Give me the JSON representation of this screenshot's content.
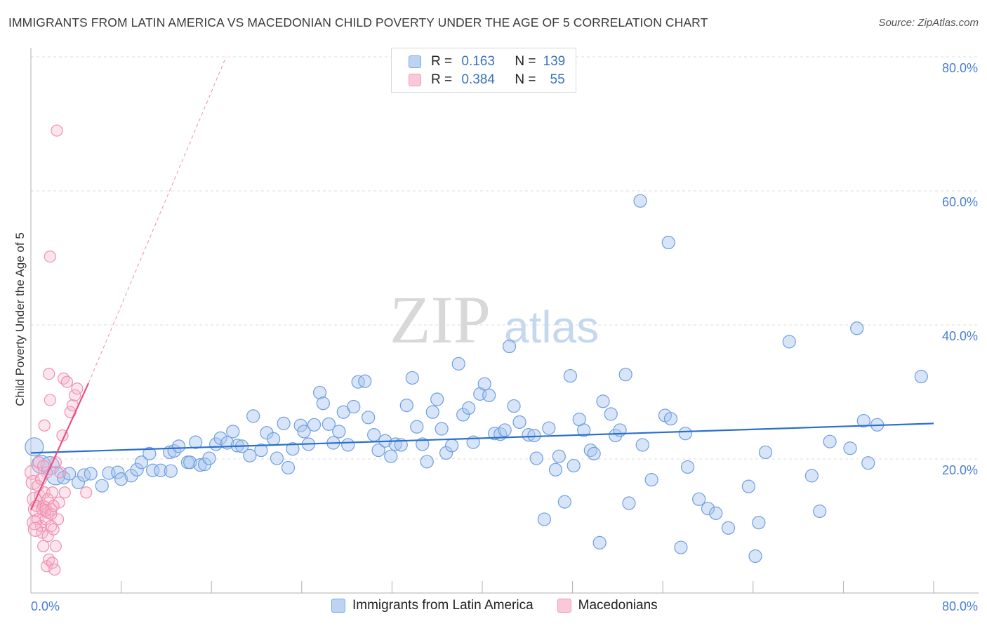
{
  "title": "IMMIGRANTS FROM LATIN AMERICA VS MACEDONIAN CHILD POVERTY UNDER THE AGE OF 5 CORRELATION CHART",
  "source": "Source: ZipAtlas.com",
  "watermark": {
    "zip": "ZIP",
    "atlas": "atlas"
  },
  "colors": {
    "blue": "#7aa8e8",
    "blue_line": "#2b6fcf",
    "pink": "#f29ab6",
    "pink_line": "#e8507e",
    "tick_text": "#4a7fd0"
  },
  "legend": {
    "rows": [
      {
        "r_label": "R =",
        "r_value": "0.163",
        "n_label": "N =",
        "n_value": "139"
      },
      {
        "r_label": "R =",
        "r_value": "0.384",
        "n_label": "N =",
        "n_value": "55"
      }
    ]
  },
  "bottom_legend": [
    "Immigrants from Latin America",
    "Macedonians"
  ],
  "chart_data": {
    "type": "scatter",
    "title": "IMMIGRANTS FROM LATIN AMERICA VS MACEDONIAN CHILD POVERTY UNDER THE AGE OF 5 CORRELATION CHART",
    "xlabel": "",
    "ylabel": "Child Poverty Under the Age of 5",
    "xlim": [
      0,
      80
    ],
    "ylim": [
      0,
      80
    ],
    "x_tick_labels": [
      "0.0%",
      "80.0%"
    ],
    "y_tick_labels": [
      "20.0%",
      "40.0%",
      "60.0%",
      "80.0%"
    ],
    "y_ticks": [
      20,
      40,
      60,
      80
    ],
    "grid": "horizontal dashed",
    "legend_position": "top-center",
    "series": [
      {
        "name": "Immigrants from Latin America",
        "color": "#7aa8e8",
        "r": 0.163,
        "n": 139,
        "trend": {
          "x": [
            0,
            80
          ],
          "y": [
            20.9,
            25.3
          ]
        },
        "points": [
          [
            0.3,
            21.8
          ],
          [
            0.9,
            19.2
          ],
          [
            1.7,
            19.0
          ],
          [
            2.2,
            17.5
          ],
          [
            2.9,
            17.2
          ],
          [
            3.4,
            17.8
          ],
          [
            4.2,
            16.5
          ],
          [
            4.7,
            17.6
          ],
          [
            5.3,
            17.8
          ],
          [
            6.3,
            16.0
          ],
          [
            6.9,
            17.9
          ],
          [
            7.7,
            18.0
          ],
          [
            8.0,
            17.0
          ],
          [
            8.9,
            17.5
          ],
          [
            9.4,
            18.4
          ],
          [
            9.8,
            19.5
          ],
          [
            10.5,
            20.8
          ],
          [
            10.8,
            18.3
          ],
          [
            11.5,
            18.3
          ],
          [
            12.3,
            21.0
          ],
          [
            12.4,
            18.2
          ],
          [
            12.7,
            21.2
          ],
          [
            13.1,
            21.9
          ],
          [
            13.9,
            19.5
          ],
          [
            14.1,
            19.5
          ],
          [
            14.6,
            22.5
          ],
          [
            15.0,
            19.1
          ],
          [
            15.4,
            19.2
          ],
          [
            15.8,
            20.1
          ],
          [
            16.4,
            22.2
          ],
          [
            16.8,
            23.1
          ],
          [
            17.4,
            22.4
          ],
          [
            17.9,
            24.1
          ],
          [
            18.3,
            22.0
          ],
          [
            18.7,
            21.9
          ],
          [
            19.4,
            20.5
          ],
          [
            19.7,
            26.4
          ],
          [
            20.4,
            21.3
          ],
          [
            20.9,
            23.9
          ],
          [
            21.5,
            23.0
          ],
          [
            21.8,
            20.1
          ],
          [
            22.4,
            25.3
          ],
          [
            22.8,
            18.7
          ],
          [
            23.2,
            21.5
          ],
          [
            23.9,
            25.0
          ],
          [
            24.2,
            24.1
          ],
          [
            24.6,
            22.2
          ],
          [
            25.1,
            25.1
          ],
          [
            25.6,
            29.9
          ],
          [
            25.9,
            28.3
          ],
          [
            26.4,
            25.2
          ],
          [
            26.8,
            22.4
          ],
          [
            27.3,
            24.1
          ],
          [
            27.7,
            27.0
          ],
          [
            28.1,
            22.1
          ],
          [
            28.6,
            27.8
          ],
          [
            29.0,
            31.5
          ],
          [
            29.6,
            31.6
          ],
          [
            29.9,
            26.2
          ],
          [
            30.4,
            23.6
          ],
          [
            30.8,
            21.3
          ],
          [
            31.4,
            22.7
          ],
          [
            31.9,
            20.4
          ],
          [
            32.3,
            22.2
          ],
          [
            32.8,
            22.1
          ],
          [
            33.3,
            28.0
          ],
          [
            33.8,
            32.1
          ],
          [
            34.2,
            24.8
          ],
          [
            34.7,
            22.2
          ],
          [
            35.1,
            19.6
          ],
          [
            35.6,
            27.0
          ],
          [
            36.0,
            28.9
          ],
          [
            36.4,
            24.5
          ],
          [
            36.8,
            20.9
          ],
          [
            37.3,
            22.0
          ],
          [
            37.9,
            34.2
          ],
          [
            38.3,
            26.6
          ],
          [
            38.8,
            27.6
          ],
          [
            39.2,
            22.5
          ],
          [
            39.8,
            29.7
          ],
          [
            40.2,
            31.2
          ],
          [
            40.6,
            29.5
          ],
          [
            41.1,
            23.8
          ],
          [
            41.6,
            23.7
          ],
          [
            42.0,
            24.3
          ],
          [
            42.4,
            36.8
          ],
          [
            42.8,
            27.9
          ],
          [
            43.3,
            25.5
          ],
          [
            44.1,
            23.6
          ],
          [
            44.6,
            23.5
          ],
          [
            44.8,
            20.1
          ],
          [
            45.5,
            11.0
          ],
          [
            45.9,
            24.6
          ],
          [
            46.5,
            18.4
          ],
          [
            46.8,
            20.4
          ],
          [
            47.3,
            13.6
          ],
          [
            47.8,
            32.4
          ],
          [
            48.1,
            19.0
          ],
          [
            48.6,
            25.9
          ],
          [
            49.0,
            24.3
          ],
          [
            49.6,
            21.3
          ],
          [
            49.9,
            20.8
          ],
          [
            50.4,
            7.5
          ],
          [
            50.7,
            28.6
          ],
          [
            51.4,
            26.7
          ],
          [
            51.8,
            23.5
          ],
          [
            52.2,
            24.3
          ],
          [
            52.7,
            32.6
          ],
          [
            53.0,
            13.4
          ],
          [
            54.0,
            58.5
          ],
          [
            54.2,
            22.1
          ],
          [
            55.0,
            16.9
          ],
          [
            56.2,
            26.5
          ],
          [
            56.5,
            52.3
          ],
          [
            56.7,
            26.0
          ],
          [
            57.6,
            6.8
          ],
          [
            58.0,
            23.8
          ],
          [
            58.2,
            18.8
          ],
          [
            59.2,
            14.0
          ],
          [
            60.0,
            12.6
          ],
          [
            60.7,
            11.9
          ],
          [
            61.8,
            9.7
          ],
          [
            63.6,
            15.9
          ],
          [
            64.2,
            5.5
          ],
          [
            64.5,
            10.5
          ],
          [
            65.1,
            21.0
          ],
          [
            67.2,
            37.5
          ],
          [
            69.2,
            17.5
          ],
          [
            69.9,
            12.2
          ],
          [
            70.8,
            22.6
          ],
          [
            72.6,
            21.6
          ],
          [
            73.2,
            39.5
          ],
          [
            73.8,
            25.7
          ],
          [
            74.2,
            19.4
          ],
          [
            75.0,
            25.1
          ],
          [
            78.9,
            32.3
          ]
        ]
      },
      {
        "name": "Macedonians",
        "color": "#f29ab6",
        "r": 0.384,
        "n": 55,
        "trend": {
          "x": [
            0,
            5.1
          ],
          "y": [
            12.4,
            31.3
          ]
        },
        "trend_extension": {
          "x": [
            5.1,
            17.3
          ],
          "y": [
            31.3,
            80.0
          ]
        },
        "points": [
          [
            0.1,
            18.0
          ],
          [
            0.2,
            16.5
          ],
          [
            0.3,
            14.0
          ],
          [
            0.4,
            12.5
          ],
          [
            0.5,
            13.0
          ],
          [
            0.6,
            11.0
          ],
          [
            0.7,
            19.5
          ],
          [
            0.8,
            14.5
          ],
          [
            0.9,
            10.0
          ],
          [
            1.0,
            12.5
          ],
          [
            1.0,
            9.0
          ],
          [
            1.1,
            7.0
          ],
          [
            1.1,
            13.0
          ],
          [
            1.2,
            15.0
          ],
          [
            1.2,
            25.0
          ],
          [
            1.3,
            12.8
          ],
          [
            1.3,
            11.0
          ],
          [
            1.4,
            18.0
          ],
          [
            1.4,
            4.0
          ],
          [
            1.5,
            8.5
          ],
          [
            1.5,
            12.0
          ],
          [
            1.6,
            32.7
          ],
          [
            1.6,
            5.0
          ],
          [
            1.7,
            28.8
          ],
          [
            1.7,
            50.2
          ],
          [
            1.8,
            12.5
          ],
          [
            1.8,
            10.0
          ],
          [
            1.9,
            4.5
          ],
          [
            1.9,
            15.0
          ],
          [
            2.0,
            9.5
          ],
          [
            2.1,
            3.5
          ],
          [
            2.2,
            19.5
          ],
          [
            2.2,
            7.0
          ],
          [
            2.3,
            69.0
          ],
          [
            2.4,
            11.0
          ],
          [
            2.5,
            13.5
          ],
          [
            2.6,
            18.0
          ],
          [
            2.8,
            23.5
          ],
          [
            2.9,
            32.0
          ],
          [
            3.0,
            15.0
          ],
          [
            3.2,
            31.5
          ],
          [
            3.5,
            27.0
          ],
          [
            3.7,
            28.0
          ],
          [
            3.9,
            29.5
          ],
          [
            4.1,
            30.5
          ],
          [
            4.9,
            15.0
          ],
          [
            0.3,
            10.5
          ],
          [
            0.6,
            16.0
          ],
          [
            0.9,
            17.0
          ],
          [
            1.1,
            19.0
          ],
          [
            1.3,
            12.3
          ],
          [
            1.5,
            14.0
          ],
          [
            1.8,
            11.8
          ],
          [
            2.0,
            13.0
          ],
          [
            0.4,
            9.5
          ]
        ]
      }
    ]
  }
}
